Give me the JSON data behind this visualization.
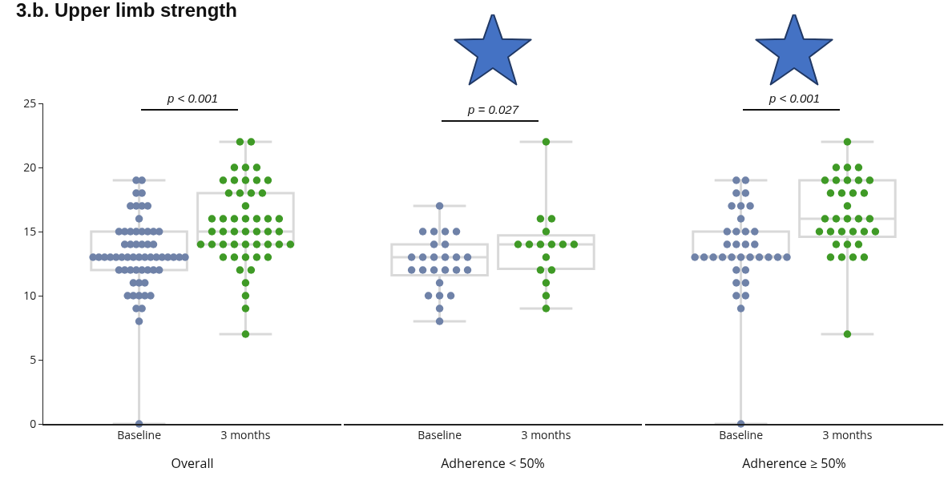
{
  "chart_data": [
    {
      "type": "box",
      "title": "3.b. Upper limb strength",
      "xlabel": "Overall",
      "categories": [
        "Baseline",
        "3 months"
      ],
      "ylim": [
        0,
        25
      ],
      "yticks": [
        0,
        5,
        10,
        15,
        20,
        25
      ],
      "marker": "circle",
      "annotations": [
        "p < 0.001"
      ],
      "boxes": [
        {
          "low": 0,
          "q1": 12,
          "median": 13,
          "q3": 15,
          "high": 19
        },
        {
          "low": 7,
          "q1": 14,
          "median": 15,
          "q3": 18,
          "high": 22
        }
      ],
      "series": [
        {
          "type": "scatter",
          "color": "#6f82a8",
          "x": [
            "Baseline",
            "Baseline",
            "Baseline",
            "Baseline",
            "Baseline",
            "Baseline",
            "Baseline",
            "Baseline",
            "Baseline",
            "Baseline",
            "Baseline",
            "Baseline",
            "Baseline",
            "Baseline",
            "Baseline",
            "Baseline",
            "Baseline",
            "Baseline",
            "Baseline",
            "Baseline",
            "Baseline",
            "Baseline",
            "Baseline",
            "Baseline",
            "Baseline",
            "Baseline",
            "Baseline",
            "Baseline",
            "Baseline",
            "Baseline",
            "Baseline",
            "Baseline",
            "Baseline",
            "Baseline",
            "Baseline",
            "Baseline",
            "Baseline",
            "Baseline",
            "Baseline",
            "Baseline",
            "Baseline",
            "Baseline",
            "Baseline",
            "Baseline",
            "Baseline",
            "Baseline",
            "Baseline",
            "Baseline",
            "Baseline",
            "Baseline",
            "Baseline",
            "Baseline",
            "Baseline",
            "Baseline",
            "Baseline",
            "Baseline",
            "Baseline",
            "Baseline",
            "Baseline",
            "Baseline"
          ],
          "values": [
            19,
            19,
            18,
            18,
            17,
            17,
            17,
            17,
            16,
            15,
            15,
            15,
            15,
            15,
            15,
            15,
            15,
            14,
            14,
            14,
            14,
            14,
            14,
            13,
            13,
            13,
            13,
            13,
            13,
            13,
            13,
            13,
            13,
            13,
            13,
            13,
            13,
            13,
            13,
            13,
            12,
            12,
            12,
            12,
            12,
            12,
            12,
            12,
            11,
            11,
            11,
            10,
            10,
            10,
            10,
            10,
            9,
            9,
            8,
            0
          ]
        },
        {
          "type": "scatter",
          "color": "#3f9a26",
          "x": [
            "3 months",
            "3 months",
            "3 months",
            "3 months",
            "3 months",
            "3 months",
            "3 months",
            "3 months",
            "3 months",
            "3 months",
            "3 months",
            "3 months",
            "3 months",
            "3 months",
            "3 months",
            "3 months",
            "3 months",
            "3 months",
            "3 months",
            "3 months",
            "3 months",
            "3 months",
            "3 months",
            "3 months",
            "3 months",
            "3 months",
            "3 months",
            "3 months",
            "3 months",
            "3 months",
            "3 months",
            "3 months",
            "3 months",
            "3 months",
            "3 months",
            "3 months",
            "3 months",
            "3 months",
            "3 months",
            "3 months",
            "3 months",
            "3 months",
            "3 months",
            "3 months",
            "3 months",
            "3 months",
            "3 months",
            "3 months",
            "3 months"
          ],
          "values": [
            22,
            22,
            20,
            20,
            20,
            19,
            19,
            19,
            19,
            19,
            18,
            18,
            18,
            18,
            17,
            16,
            16,
            16,
            16,
            16,
            16,
            16,
            15,
            15,
            15,
            15,
            15,
            15,
            15,
            14,
            14,
            14,
            14,
            14,
            14,
            14,
            14,
            14,
            13,
            13,
            13,
            13,
            13,
            12,
            12,
            11,
            10,
            9,
            7
          ]
        }
      ]
    },
    {
      "type": "box",
      "xlabel": "Adherence < 50%",
      "categories": [
        "Baseline",
        "3 months"
      ],
      "ylim": [
        0,
        25
      ],
      "yticks": [
        0,
        5,
        10,
        15,
        20,
        25
      ],
      "tick_labels": "x",
      "marker": "circle",
      "annotations": [
        "p = 0.027"
      ],
      "boxes": [
        {
          "low": 8,
          "q1": 11.6,
          "median": 13,
          "q3": 14,
          "high": 17
        },
        {
          "low": 9,
          "q1": 12.1,
          "median": 14,
          "q3": 14.7,
          "high": 22
        }
      ],
      "series": [
        {
          "type": "scatter",
          "color": "#6f82a8",
          "x": [
            "Baseline",
            "Baseline",
            "Baseline",
            "Baseline",
            "Baseline",
            "Baseline",
            "Baseline",
            "Baseline",
            "Baseline",
            "Baseline",
            "Baseline",
            "Baseline",
            "Baseline",
            "Baseline",
            "Baseline",
            "Baseline",
            "Baseline",
            "Baseline",
            "Baseline",
            "Baseline",
            "Baseline",
            "Baseline",
            "Baseline",
            "Baseline",
            "Baseline"
          ],
          "values": [
            17,
            15,
            15,
            15,
            15,
            14,
            14,
            13,
            13,
            13,
            13,
            13,
            13,
            12,
            12,
            12,
            12,
            12,
            12,
            11,
            10,
            10,
            10,
            9,
            8
          ]
        },
        {
          "type": "scatter",
          "color": "#3f9a26",
          "x": [
            "3 months",
            "3 months",
            "3 months",
            "3 months",
            "3 months",
            "3 months",
            "3 months",
            "3 months",
            "3 months",
            "3 months",
            "3 months",
            "3 months",
            "3 months",
            "3 months",
            "3 months",
            "3 months"
          ],
          "values": [
            22,
            16,
            16,
            15,
            14,
            14,
            14,
            14,
            14,
            14,
            13,
            12,
            12,
            11,
            10,
            9
          ]
        }
      ]
    },
    {
      "type": "box",
      "xlabel": "Adherence ≥ 50%",
      "categories": [
        "Baseline",
        "3 months"
      ],
      "ylim": [
        0,
        25
      ],
      "yticks": [
        0,
        5,
        10,
        15,
        20,
        25
      ],
      "tick_labels": "x",
      "marker": "circle",
      "annotations": [
        "p < 0.001"
      ],
      "boxes": [
        {
          "low": 0,
          "q1": 13,
          "median": 13,
          "q3": 15,
          "high": 19
        },
        {
          "low": 7,
          "q1": 14.6,
          "median": 16,
          "q3": 19,
          "high": 22
        }
      ],
      "series": [
        {
          "type": "scatter",
          "color": "#6f82a8",
          "x": [
            "Baseline",
            "Baseline",
            "Baseline",
            "Baseline",
            "Baseline",
            "Baseline",
            "Baseline",
            "Baseline",
            "Baseline",
            "Baseline",
            "Baseline",
            "Baseline",
            "Baseline",
            "Baseline",
            "Baseline",
            "Baseline",
            "Baseline",
            "Baseline",
            "Baseline",
            "Baseline",
            "Baseline",
            "Baseline",
            "Baseline",
            "Baseline",
            "Baseline",
            "Baseline",
            "Baseline",
            "Baseline",
            "Baseline",
            "Baseline",
            "Baseline",
            "Baseline",
            "Baseline",
            "Baseline",
            "Baseline"
          ],
          "values": [
            19,
            19,
            18,
            18,
            17,
            17,
            17,
            16,
            15,
            15,
            15,
            15,
            14,
            14,
            14,
            14,
            13,
            13,
            13,
            13,
            13,
            13,
            13,
            13,
            13,
            13,
            13,
            12,
            12,
            11,
            11,
            10,
            10,
            9,
            0
          ]
        },
        {
          "type": "scatter",
          "color": "#3f9a26",
          "x": [
            "3 months",
            "3 months",
            "3 months",
            "3 months",
            "3 months",
            "3 months",
            "3 months",
            "3 months",
            "3 months",
            "3 months",
            "3 months",
            "3 months",
            "3 months",
            "3 months",
            "3 months",
            "3 months",
            "3 months",
            "3 months",
            "3 months",
            "3 months",
            "3 months",
            "3 months",
            "3 months",
            "3 months",
            "3 months",
            "3 months",
            "3 months",
            "3 months",
            "3 months",
            "3 months",
            "3 months",
            "3 months",
            "3 months"
          ],
          "values": [
            22,
            20,
            20,
            20,
            19,
            19,
            19,
            19,
            19,
            18,
            18,
            18,
            18,
            17,
            16,
            16,
            16,
            16,
            16,
            15,
            15,
            15,
            15,
            15,
            15,
            14,
            14,
            14,
            13,
            13,
            13,
            13,
            7
          ]
        }
      ]
    }
  ]
}
